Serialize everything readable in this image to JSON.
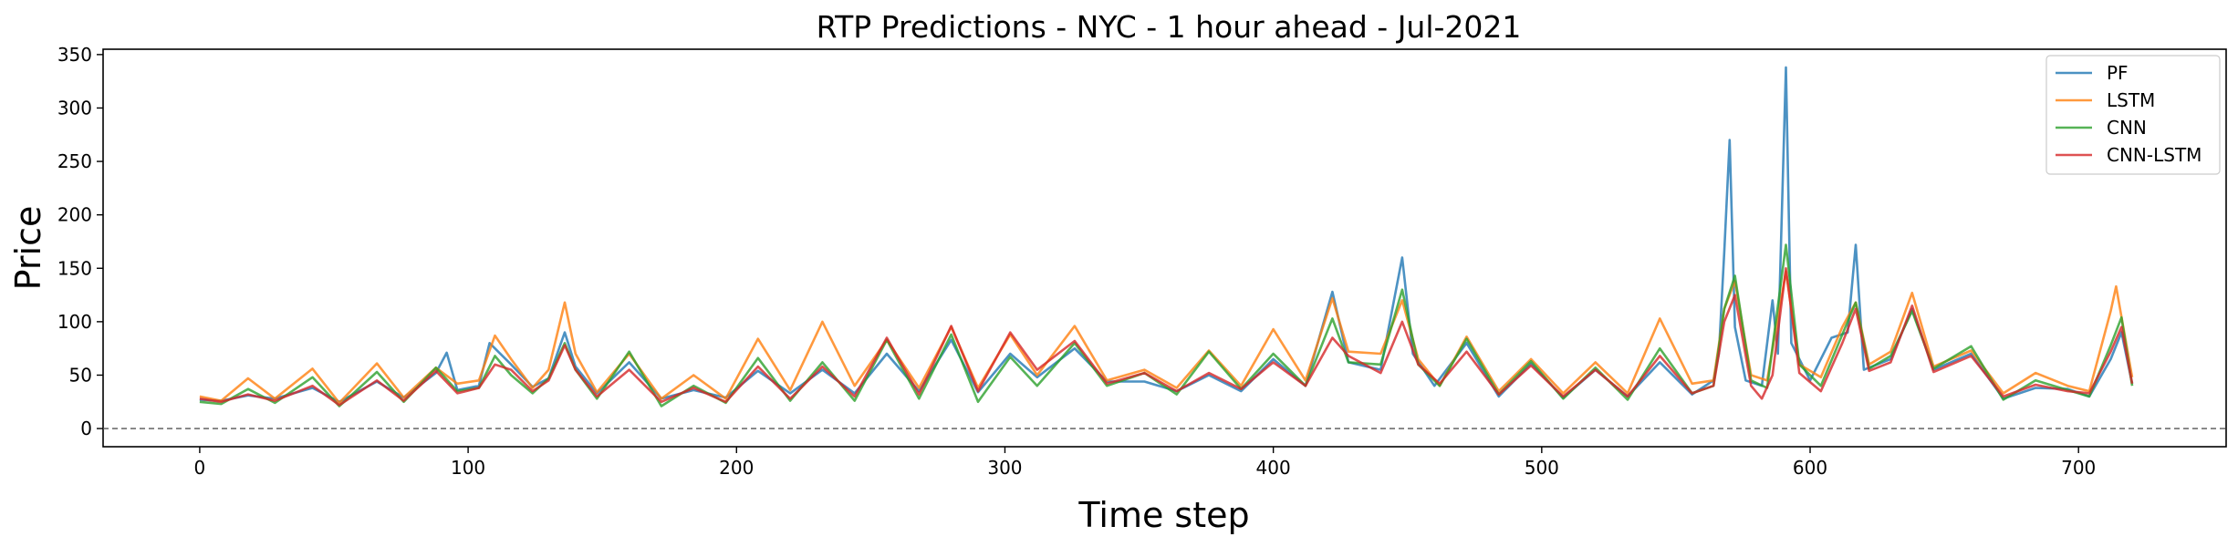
{
  "chart_data": {
    "type": "line",
    "title": "RTP Predictions - NYC - 1 hour ahead - Jul-2021",
    "xlabel": "Time step",
    "ylabel": "Price",
    "xlim": [
      -36,
      755
    ],
    "ylim": [
      -17,
      355
    ],
    "xticks": [
      0,
      100,
      200,
      300,
      400,
      500,
      600,
      700
    ],
    "yticks": [
      0,
      50,
      100,
      150,
      200,
      250,
      300,
      350
    ],
    "grid": false,
    "legend_position": "top-right",
    "reference_line": {
      "y": 0,
      "style": "dashed",
      "color": "#555555"
    },
    "series": [
      {
        "name": "PF",
        "color": "#1f77b4",
        "points": [
          [
            0,
            27
          ],
          [
            8,
            26
          ],
          [
            18,
            31
          ],
          [
            28,
            28
          ],
          [
            42,
            38
          ],
          [
            52,
            25
          ],
          [
            66,
            44
          ],
          [
            76,
            29
          ],
          [
            88,
            52
          ],
          [
            92,
            71
          ],
          [
            96,
            36
          ],
          [
            104,
            40
          ],
          [
            108,
            80
          ],
          [
            116,
            60
          ],
          [
            124,
            39
          ],
          [
            130,
            47
          ],
          [
            136,
            90
          ],
          [
            140,
            58
          ],
          [
            148,
            33
          ],
          [
            160,
            62
          ],
          [
            172,
            28
          ],
          [
            184,
            36
          ],
          [
            196,
            29
          ],
          [
            208,
            54
          ],
          [
            220,
            33
          ],
          [
            232,
            55
          ],
          [
            244,
            33
          ],
          [
            256,
            70
          ],
          [
            268,
            35
          ],
          [
            280,
            83
          ],
          [
            290,
            34
          ],
          [
            302,
            70
          ],
          [
            312,
            48
          ],
          [
            326,
            75
          ],
          [
            338,
            44
          ],
          [
            352,
            44
          ],
          [
            364,
            35
          ],
          [
            376,
            50
          ],
          [
            388,
            35
          ],
          [
            400,
            65
          ],
          [
            412,
            40
          ],
          [
            422,
            128
          ],
          [
            428,
            62
          ],
          [
            440,
            55
          ],
          [
            448,
            160
          ],
          [
            452,
            70
          ],
          [
            460,
            40
          ],
          [
            472,
            80
          ],
          [
            484,
            30
          ],
          [
            496,
            61
          ],
          [
            508,
            29
          ],
          [
            520,
            55
          ],
          [
            532,
            30
          ],
          [
            544,
            62
          ],
          [
            556,
            32
          ],
          [
            564,
            45
          ],
          [
            566,
            70
          ],
          [
            568,
            165
          ],
          [
            570,
            270
          ],
          [
            572,
            95
          ],
          [
            576,
            45
          ],
          [
            582,
            40
          ],
          [
            586,
            120
          ],
          [
            588,
            70
          ],
          [
            591,
            338
          ],
          [
            593,
            80
          ],
          [
            600,
            45
          ],
          [
            608,
            85
          ],
          [
            614,
            90
          ],
          [
            617,
            172
          ],
          [
            620,
            55
          ],
          [
            630,
            65
          ],
          [
            638,
            112
          ],
          [
            646,
            55
          ],
          [
            660,
            70
          ],
          [
            672,
            28
          ],
          [
            684,
            38
          ],
          [
            696,
            37
          ],
          [
            704,
            30
          ],
          [
            712,
            65
          ],
          [
            716,
            90
          ],
          [
            720,
            42
          ]
        ]
      },
      {
        "name": "LSTM",
        "color": "#ff7f0e",
        "points": [
          [
            0,
            30
          ],
          [
            8,
            26
          ],
          [
            18,
            47
          ],
          [
            28,
            28
          ],
          [
            42,
            56
          ],
          [
            52,
            24
          ],
          [
            66,
            61
          ],
          [
            76,
            29
          ],
          [
            88,
            57
          ],
          [
            96,
            42
          ],
          [
            104,
            45
          ],
          [
            110,
            87
          ],
          [
            116,
            65
          ],
          [
            124,
            38
          ],
          [
            130,
            55
          ],
          [
            136,
            118
          ],
          [
            140,
            70
          ],
          [
            148,
            34
          ],
          [
            160,
            70
          ],
          [
            172,
            28
          ],
          [
            184,
            50
          ],
          [
            196,
            28
          ],
          [
            208,
            84
          ],
          [
            220,
            36
          ],
          [
            232,
            100
          ],
          [
            244,
            40
          ],
          [
            256,
            83
          ],
          [
            268,
            38
          ],
          [
            280,
            95
          ],
          [
            290,
            38
          ],
          [
            302,
            88
          ],
          [
            312,
            50
          ],
          [
            326,
            96
          ],
          [
            338,
            45
          ],
          [
            352,
            55
          ],
          [
            364,
            38
          ],
          [
            376,
            73
          ],
          [
            388,
            40
          ],
          [
            400,
            93
          ],
          [
            412,
            45
          ],
          [
            422,
            122
          ],
          [
            428,
            72
          ],
          [
            440,
            70
          ],
          [
            448,
            120
          ],
          [
            454,
            65
          ],
          [
            462,
            40
          ],
          [
            472,
            86
          ],
          [
            484,
            35
          ],
          [
            496,
            65
          ],
          [
            508,
            33
          ],
          [
            520,
            62
          ],
          [
            532,
            33
          ],
          [
            544,
            103
          ],
          [
            556,
            42
          ],
          [
            564,
            45
          ],
          [
            568,
            112
          ],
          [
            572,
            138
          ],
          [
            578,
            50
          ],
          [
            584,
            45
          ],
          [
            591,
            147
          ],
          [
            596,
            60
          ],
          [
            604,
            48
          ],
          [
            612,
            95
          ],
          [
            617,
            118
          ],
          [
            622,
            60
          ],
          [
            630,
            72
          ],
          [
            638,
            127
          ],
          [
            646,
            58
          ],
          [
            660,
            73
          ],
          [
            672,
            33
          ],
          [
            684,
            52
          ],
          [
            696,
            40
          ],
          [
            704,
            35
          ],
          [
            712,
            110
          ],
          [
            714,
            133
          ],
          [
            720,
            48
          ]
        ]
      },
      {
        "name": "CNN",
        "color": "#2ca02c",
        "points": [
          [
            0,
            25
          ],
          [
            8,
            23
          ],
          [
            18,
            37
          ],
          [
            28,
            24
          ],
          [
            42,
            48
          ],
          [
            52,
            21
          ],
          [
            66,
            53
          ],
          [
            76,
            25
          ],
          [
            88,
            57
          ],
          [
            96,
            35
          ],
          [
            104,
            38
          ],
          [
            110,
            68
          ],
          [
            116,
            50
          ],
          [
            124,
            33
          ],
          [
            130,
            47
          ],
          [
            136,
            80
          ],
          [
            140,
            55
          ],
          [
            148,
            28
          ],
          [
            160,
            72
          ],
          [
            172,
            21
          ],
          [
            184,
            40
          ],
          [
            196,
            24
          ],
          [
            208,
            66
          ],
          [
            220,
            26
          ],
          [
            232,
            62
          ],
          [
            244,
            26
          ],
          [
            256,
            83
          ],
          [
            268,
            28
          ],
          [
            280,
            88
          ],
          [
            290,
            25
          ],
          [
            302,
            67
          ],
          [
            312,
            40
          ],
          [
            326,
            80
          ],
          [
            338,
            40
          ],
          [
            352,
            52
          ],
          [
            364,
            32
          ],
          [
            376,
            72
          ],
          [
            388,
            37
          ],
          [
            400,
            70
          ],
          [
            412,
            40
          ],
          [
            422,
            103
          ],
          [
            428,
            62
          ],
          [
            440,
            60
          ],
          [
            448,
            130
          ],
          [
            454,
            60
          ],
          [
            462,
            40
          ],
          [
            472,
            84
          ],
          [
            484,
            32
          ],
          [
            496,
            63
          ],
          [
            508,
            28
          ],
          [
            520,
            57
          ],
          [
            532,
            27
          ],
          [
            544,
            75
          ],
          [
            556,
            33
          ],
          [
            564,
            40
          ],
          [
            568,
            112
          ],
          [
            572,
            143
          ],
          [
            578,
            45
          ],
          [
            584,
            38
          ],
          [
            591,
            172
          ],
          [
            596,
            60
          ],
          [
            604,
            40
          ],
          [
            612,
            88
          ],
          [
            617,
            118
          ],
          [
            622,
            56
          ],
          [
            630,
            68
          ],
          [
            638,
            110
          ],
          [
            646,
            56
          ],
          [
            660,
            77
          ],
          [
            672,
            27
          ],
          [
            684,
            45
          ],
          [
            696,
            36
          ],
          [
            704,
            30
          ],
          [
            712,
            78
          ],
          [
            716,
            104
          ],
          [
            720,
            40
          ]
        ]
      },
      {
        "name": "CNN-LSTM",
        "color": "#d62728",
        "points": [
          [
            0,
            28
          ],
          [
            8,
            25
          ],
          [
            18,
            32
          ],
          [
            28,
            26
          ],
          [
            42,
            40
          ],
          [
            52,
            22
          ],
          [
            66,
            45
          ],
          [
            76,
            26
          ],
          [
            88,
            54
          ],
          [
            96,
            33
          ],
          [
            104,
            38
          ],
          [
            110,
            60
          ],
          [
            116,
            55
          ],
          [
            124,
            35
          ],
          [
            130,
            45
          ],
          [
            136,
            78
          ],
          [
            140,
            55
          ],
          [
            148,
            30
          ],
          [
            160,
            55
          ],
          [
            172,
            25
          ],
          [
            184,
            38
          ],
          [
            196,
            25
          ],
          [
            208,
            58
          ],
          [
            220,
            28
          ],
          [
            232,
            58
          ],
          [
            244,
            30
          ],
          [
            256,
            85
          ],
          [
            268,
            32
          ],
          [
            280,
            96
          ],
          [
            290,
            35
          ],
          [
            302,
            90
          ],
          [
            312,
            55
          ],
          [
            326,
            82
          ],
          [
            338,
            42
          ],
          [
            352,
            52
          ],
          [
            364,
            35
          ],
          [
            376,
            52
          ],
          [
            388,
            37
          ],
          [
            400,
            62
          ],
          [
            412,
            40
          ],
          [
            422,
            85
          ],
          [
            428,
            68
          ],
          [
            440,
            52
          ],
          [
            448,
            100
          ],
          [
            454,
            60
          ],
          [
            462,
            42
          ],
          [
            472,
            72
          ],
          [
            484,
            32
          ],
          [
            496,
            59
          ],
          [
            508,
            30
          ],
          [
            520,
            55
          ],
          [
            532,
            30
          ],
          [
            544,
            68
          ],
          [
            556,
            33
          ],
          [
            564,
            40
          ],
          [
            568,
            100
          ],
          [
            572,
            125
          ],
          [
            578,
            40
          ],
          [
            582,
            28
          ],
          [
            586,
            50
          ],
          [
            591,
            150
          ],
          [
            596,
            52
          ],
          [
            604,
            35
          ],
          [
            612,
            80
          ],
          [
            617,
            112
          ],
          [
            622,
            54
          ],
          [
            630,
            62
          ],
          [
            638,
            115
          ],
          [
            646,
            53
          ],
          [
            660,
            68
          ],
          [
            672,
            30
          ],
          [
            684,
            41
          ],
          [
            696,
            35
          ],
          [
            704,
            33
          ],
          [
            712,
            72
          ],
          [
            716,
            95
          ],
          [
            720,
            42
          ]
        ]
      }
    ]
  }
}
